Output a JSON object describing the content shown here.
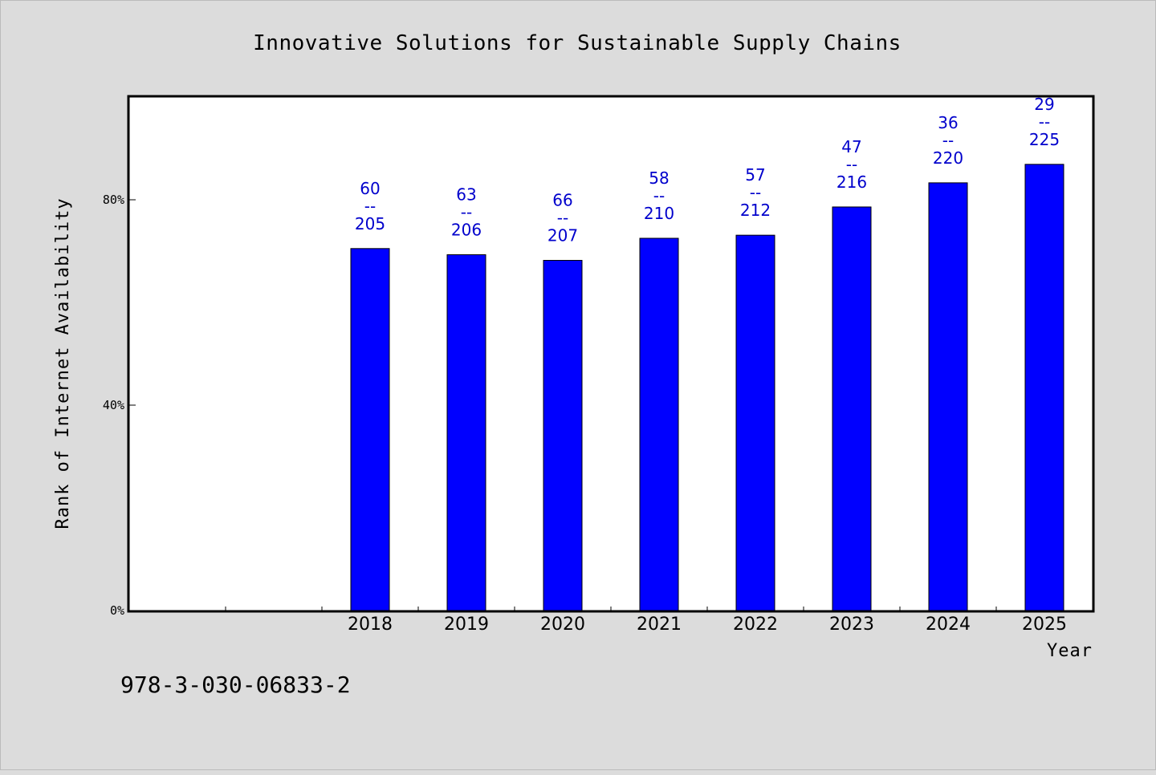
{
  "chart_data": {
    "type": "bar",
    "title": "Innovative Solutions for Sustainable Supply Chains",
    "xlabel": "Year",
    "ylabel": "Rank of Internet Availability",
    "categories": [
      "",
      "",
      "2018",
      "2019",
      "2020",
      "2021",
      "2022",
      "2023",
      "2024",
      "2025"
    ],
    "values": [
      null,
      null,
      70.5,
      69.3,
      68.2,
      72.5,
      73.1,
      78.6,
      83.3,
      86.9
    ],
    "data_labels": [
      "",
      "",
      "60\n--\n205",
      "63\n--\n206",
      "66\n--\n207",
      "58\n--\n210",
      "57\n--\n212",
      "47\n--\n216",
      "36\n--\n220",
      "29\n--\n225"
    ],
    "yticks": [
      {
        "value": 0,
        "label": "0%"
      },
      {
        "value": 40,
        "label": "40%"
      },
      {
        "value": 80,
        "label": "80%"
      }
    ],
    "ylim": [
      0,
      100
    ],
    "grid": false,
    "legend": "none",
    "colors": {
      "bar": "#0000ff",
      "label": "#0000cc",
      "background": "#dcdcdc",
      "plot": "#ffffff"
    }
  },
  "footer_text": "978-3-030-06833-2"
}
